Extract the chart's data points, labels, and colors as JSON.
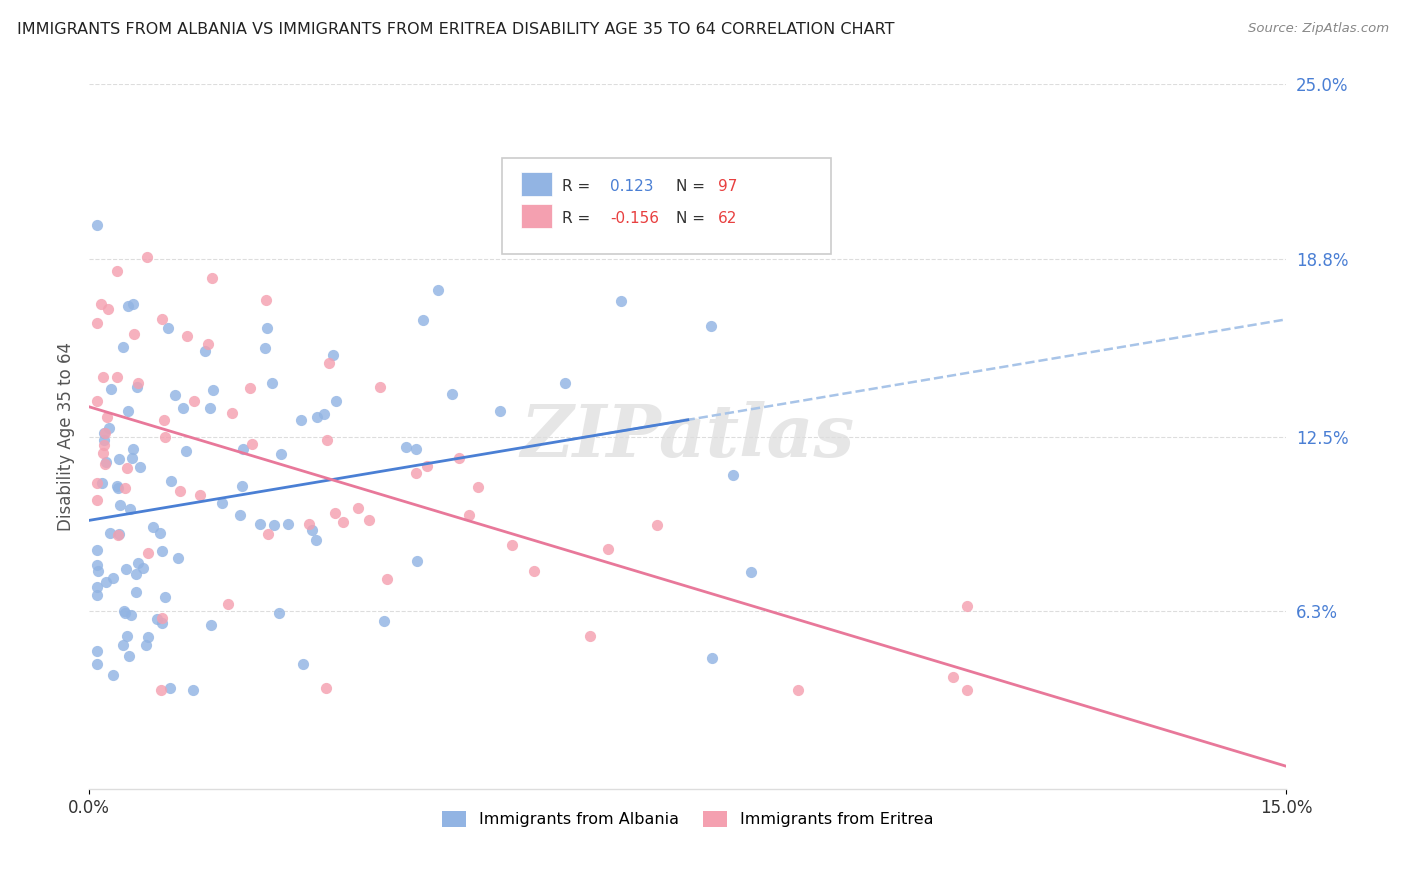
{
  "title": "IMMIGRANTS FROM ALBANIA VS IMMIGRANTS FROM ERITREA DISABILITY AGE 35 TO 64 CORRELATION CHART",
  "source": "Source: ZipAtlas.com",
  "ylabel": "Disability Age 35 to 64",
  "xlim": [
    0.0,
    0.15
  ],
  "ylim": [
    0.0,
    0.25
  ],
  "xtick_labels": [
    "0.0%",
    "15.0%"
  ],
  "xtick_vals": [
    0.0,
    0.15
  ],
  "ytick_labels_right": [
    "6.3%",
    "12.5%",
    "18.8%",
    "25.0%"
  ],
  "ytick_vals_right": [
    0.063,
    0.125,
    0.188,
    0.25
  ],
  "albania_color": "#92b4e3",
  "eritrea_color": "#f4a0b0",
  "albania_line_color": "#4a7fd4",
  "eritrea_line_color": "#e8789a",
  "dashed_line_color": "#a8c4e8",
  "legend_label_albania": "Immigrants from Albania",
  "legend_label_eritrea": "Immigrants from Eritrea",
  "watermark": "ZIPatlas",
  "legend_R_albania": "R =  0.123",
  "legend_N_albania": "N = 97",
  "legend_R_eritrea": "R = -0.156",
  "legend_N_eritrea": "N = 62",
  "R_color": "#4a7fd4",
  "N_color": "#e84040",
  "grid_color": "#dddddd",
  "title_color": "#222222",
  "source_color": "#888888",
  "ylabel_color": "#555555"
}
